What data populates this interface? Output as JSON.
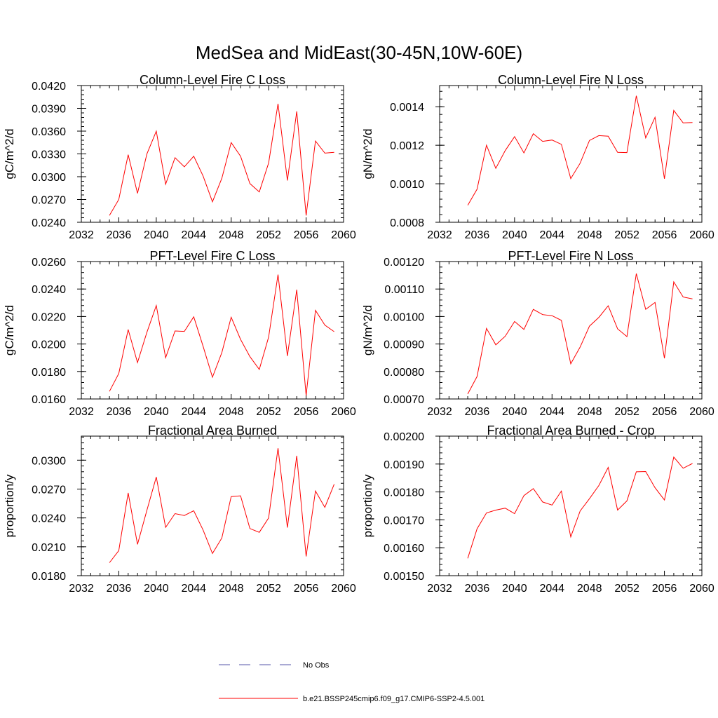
{
  "title": "MedSea and MidEast(30-45N,10W-60E)",
  "colors": {
    "model": "#ff0000",
    "obs": "#5555aa",
    "axis": "#000000"
  },
  "legend": [
    {
      "label": "No Obs",
      "style": "dashed",
      "color": "#5555aa"
    },
    {
      "label": "b.e21.BSSP245cmip6.f09_g17.CMIP6-SSP2-4.5.001",
      "style": "solid",
      "color": "#ff0000"
    }
  ],
  "chart_data": [
    {
      "type": "line",
      "title": "Column-Level Fire C Loss",
      "ylabel": "gC/m^2/d",
      "xlim": [
        2032,
        2060
      ],
      "ylim": [
        0.024,
        0.042
      ],
      "xticks": [
        "2032",
        "2036",
        "2040",
        "2044",
        "2048",
        "2052",
        "2056",
        "2060"
      ],
      "yticks": [
        "0.0240",
        "0.0270",
        "0.0300",
        "0.0330",
        "0.0360",
        "0.0390",
        "0.0420"
      ],
      "x": [
        2035,
        2036,
        2037,
        2038,
        2039,
        2040,
        2041,
        2042,
        2043,
        2044,
        2045,
        2046,
        2047,
        2048,
        2049,
        2050,
        2051,
        2052,
        2053,
        2054,
        2055,
        2056,
        2057,
        2058,
        2059
      ],
      "series": [
        {
          "name": "b.e21.BSSP245cmip6.f09_g17.CMIP6-SSP2-4.5.001",
          "values": [
            0.0249,
            0.027,
            0.0329,
            0.0278,
            0.033,
            0.036,
            0.029,
            0.0325,
            0.0313,
            0.0327,
            0.0301,
            0.0267,
            0.0298,
            0.0345,
            0.0327,
            0.0291,
            0.028,
            0.0318,
            0.0396,
            0.0295,
            0.0386,
            0.0249,
            0.0347,
            0.0331,
            0.0332
          ]
        }
      ]
    },
    {
      "type": "line",
      "title": "Column-Level Fire N Loss",
      "ylabel": "gN/m^2/d",
      "xlim": [
        2032,
        2060
      ],
      "ylim": [
        0.0008,
        0.00151
      ],
      "xticks": [
        "2032",
        "2036",
        "2040",
        "2044",
        "2048",
        "2052",
        "2056",
        "2060"
      ],
      "yticks": [
        "0.0008",
        "0.0010",
        "0.0012",
        "0.0014"
      ],
      "x": [
        2035,
        2036,
        2037,
        2038,
        2039,
        2040,
        2041,
        2042,
        2043,
        2044,
        2045,
        2046,
        2047,
        2048,
        2049,
        2050,
        2051,
        2052,
        2053,
        2054,
        2055,
        2056,
        2057,
        2058,
        2059
      ],
      "series": [
        {
          "name": "b.e21.BSSP245cmip6.f09_g17.CMIP6-SSP2-4.5.001",
          "values": [
            0.000888,
            0.000972,
            0.0012,
            0.00108,
            0.001172,
            0.001245,
            0.00116,
            0.00126,
            0.00122,
            0.001227,
            0.001205,
            0.001027,
            0.001107,
            0.001225,
            0.00125,
            0.001247,
            0.001163,
            0.001162,
            0.001457,
            0.001238,
            0.001345,
            0.001026,
            0.001381,
            0.001316,
            0.001318
          ]
        }
      ]
    },
    {
      "type": "line",
      "title": "PFT-Level Fire C Loss",
      "ylabel": "gC/m^2/d",
      "xlim": [
        2032,
        2060
      ],
      "ylim": [
        0.016,
        0.026
      ],
      "xticks": [
        "2032",
        "2036",
        "2040",
        "2044",
        "2048",
        "2052",
        "2056",
        "2060"
      ],
      "yticks": [
        "0.0160",
        "0.0180",
        "0.0200",
        "0.0220",
        "0.0240",
        "0.0260"
      ],
      "x": [
        2035,
        2036,
        2037,
        2038,
        2039,
        2040,
        2041,
        2042,
        2043,
        2044,
        2045,
        2046,
        2047,
        2048,
        2049,
        2050,
        2051,
        2052,
        2053,
        2054,
        2055,
        2056,
        2057,
        2058,
        2059
      ],
      "series": [
        {
          "name": "b.e21.BSSP245cmip6.f09_g17.CMIP6-SSP2-4.5.001",
          "values": [
            0.01655,
            0.01785,
            0.02105,
            0.01865,
            0.02085,
            0.0228,
            0.019,
            0.02095,
            0.02092,
            0.02198,
            0.01984,
            0.01758,
            0.01938,
            0.02195,
            0.02033,
            0.01908,
            0.01815,
            0.0205,
            0.02505,
            0.01913,
            0.02395,
            0.01625,
            0.02245,
            0.02137,
            0.0209
          ]
        }
      ]
    },
    {
      "type": "line",
      "title": "PFT-Level Fire N Loss",
      "ylabel": "gN/m^2/d",
      "xlim": [
        2032,
        2060
      ],
      "ylim": [
        0.0007,
        0.0012
      ],
      "xticks": [
        "2032",
        "2036",
        "2040",
        "2044",
        "2048",
        "2052",
        "2056",
        "2060"
      ],
      "yticks": [
        "0.00070",
        "0.00080",
        "0.00090",
        "0.00100",
        "0.00110",
        "0.00120"
      ],
      "x": [
        2035,
        2036,
        2037,
        2038,
        2039,
        2040,
        2041,
        2042,
        2043,
        2044,
        2045,
        2046,
        2047,
        2048,
        2049,
        2050,
        2051,
        2052,
        2053,
        2054,
        2055,
        2056,
        2057,
        2058,
        2059
      ],
      "series": [
        {
          "name": "b.e21.BSSP245cmip6.f09_g17.CMIP6-SSP2-4.5.001",
          "values": [
            0.000718,
            0.000782,
            0.000957,
            0.000897,
            0.000928,
            0.000982,
            0.000953,
            0.001026,
            0.001007,
            0.001003,
            0.000986,
            0.000828,
            0.000889,
            0.000965,
            0.000997,
            0.001039,
            0.000955,
            0.000927,
            0.001156,
            0.001026,
            0.001051,
            0.000848,
            0.001126,
            0.001071,
            0.001064
          ]
        }
      ]
    },
    {
      "type": "line",
      "title": "Fractional Area Burned",
      "ylabel": "proportion/y",
      "xlim": [
        2032,
        2060
      ],
      "ylim": [
        0.018,
        0.0325
      ],
      "xticks": [
        "2032",
        "2036",
        "2040",
        "2044",
        "2048",
        "2052",
        "2056",
        "2060"
      ],
      "yticks": [
        "0.0180",
        "0.0210",
        "0.0240",
        "0.0270",
        "0.0300"
      ],
      "x": [
        2035,
        2036,
        2037,
        2038,
        2039,
        2040,
        2041,
        2042,
        2043,
        2044,
        2045,
        2046,
        2047,
        2048,
        2049,
        2050,
        2051,
        2052,
        2053,
        2054,
        2055,
        2056,
        2057,
        2058,
        2059
      ],
      "series": [
        {
          "name": "b.e21.BSSP245cmip6.f09_g17.CMIP6-SSP2-4.5.001",
          "values": [
            0.01935,
            0.0206,
            0.0266,
            0.02125,
            0.0248,
            0.02825,
            0.02302,
            0.02445,
            0.02425,
            0.02475,
            0.02275,
            0.0203,
            0.02192,
            0.02622,
            0.0263,
            0.0229,
            0.0225,
            0.024,
            0.03125,
            0.023,
            0.03045,
            0.02,
            0.0268,
            0.0251,
            0.0275
          ]
        }
      ]
    },
    {
      "type": "line",
      "title": "Fractional Area Burned - Crop",
      "ylabel": "proportion/y",
      "xlim": [
        2032,
        2060
      ],
      "ylim": [
        0.0015,
        0.002
      ],
      "xticks": [
        "2032",
        "2036",
        "2040",
        "2044",
        "2048",
        "2052",
        "2056",
        "2060"
      ],
      "yticks": [
        "0.00150",
        "0.00160",
        "0.00170",
        "0.00180",
        "0.00190",
        "0.00200"
      ],
      "x": [
        2035,
        2036,
        2037,
        2038,
        2039,
        2040,
        2041,
        2042,
        2043,
        2044,
        2045,
        2046,
        2047,
        2048,
        2049,
        2050,
        2051,
        2052,
        2053,
        2054,
        2055,
        2056,
        2057,
        2058,
        2059
      ],
      "series": [
        {
          "name": "b.e21.BSSP245cmip6.f09_g17.CMIP6-SSP2-4.5.001",
          "values": [
            0.001562,
            0.001668,
            0.001725,
            0.001735,
            0.001742,
            0.001722,
            0.001787,
            0.001812,
            0.001764,
            0.001753,
            0.001803,
            0.001639,
            0.001732,
            0.001776,
            0.001823,
            0.001888,
            0.001735,
            0.001768,
            0.001872,
            0.001873,
            0.001815,
            0.001771,
            0.001925,
            0.001885,
            0.001902
          ]
        }
      ]
    }
  ]
}
